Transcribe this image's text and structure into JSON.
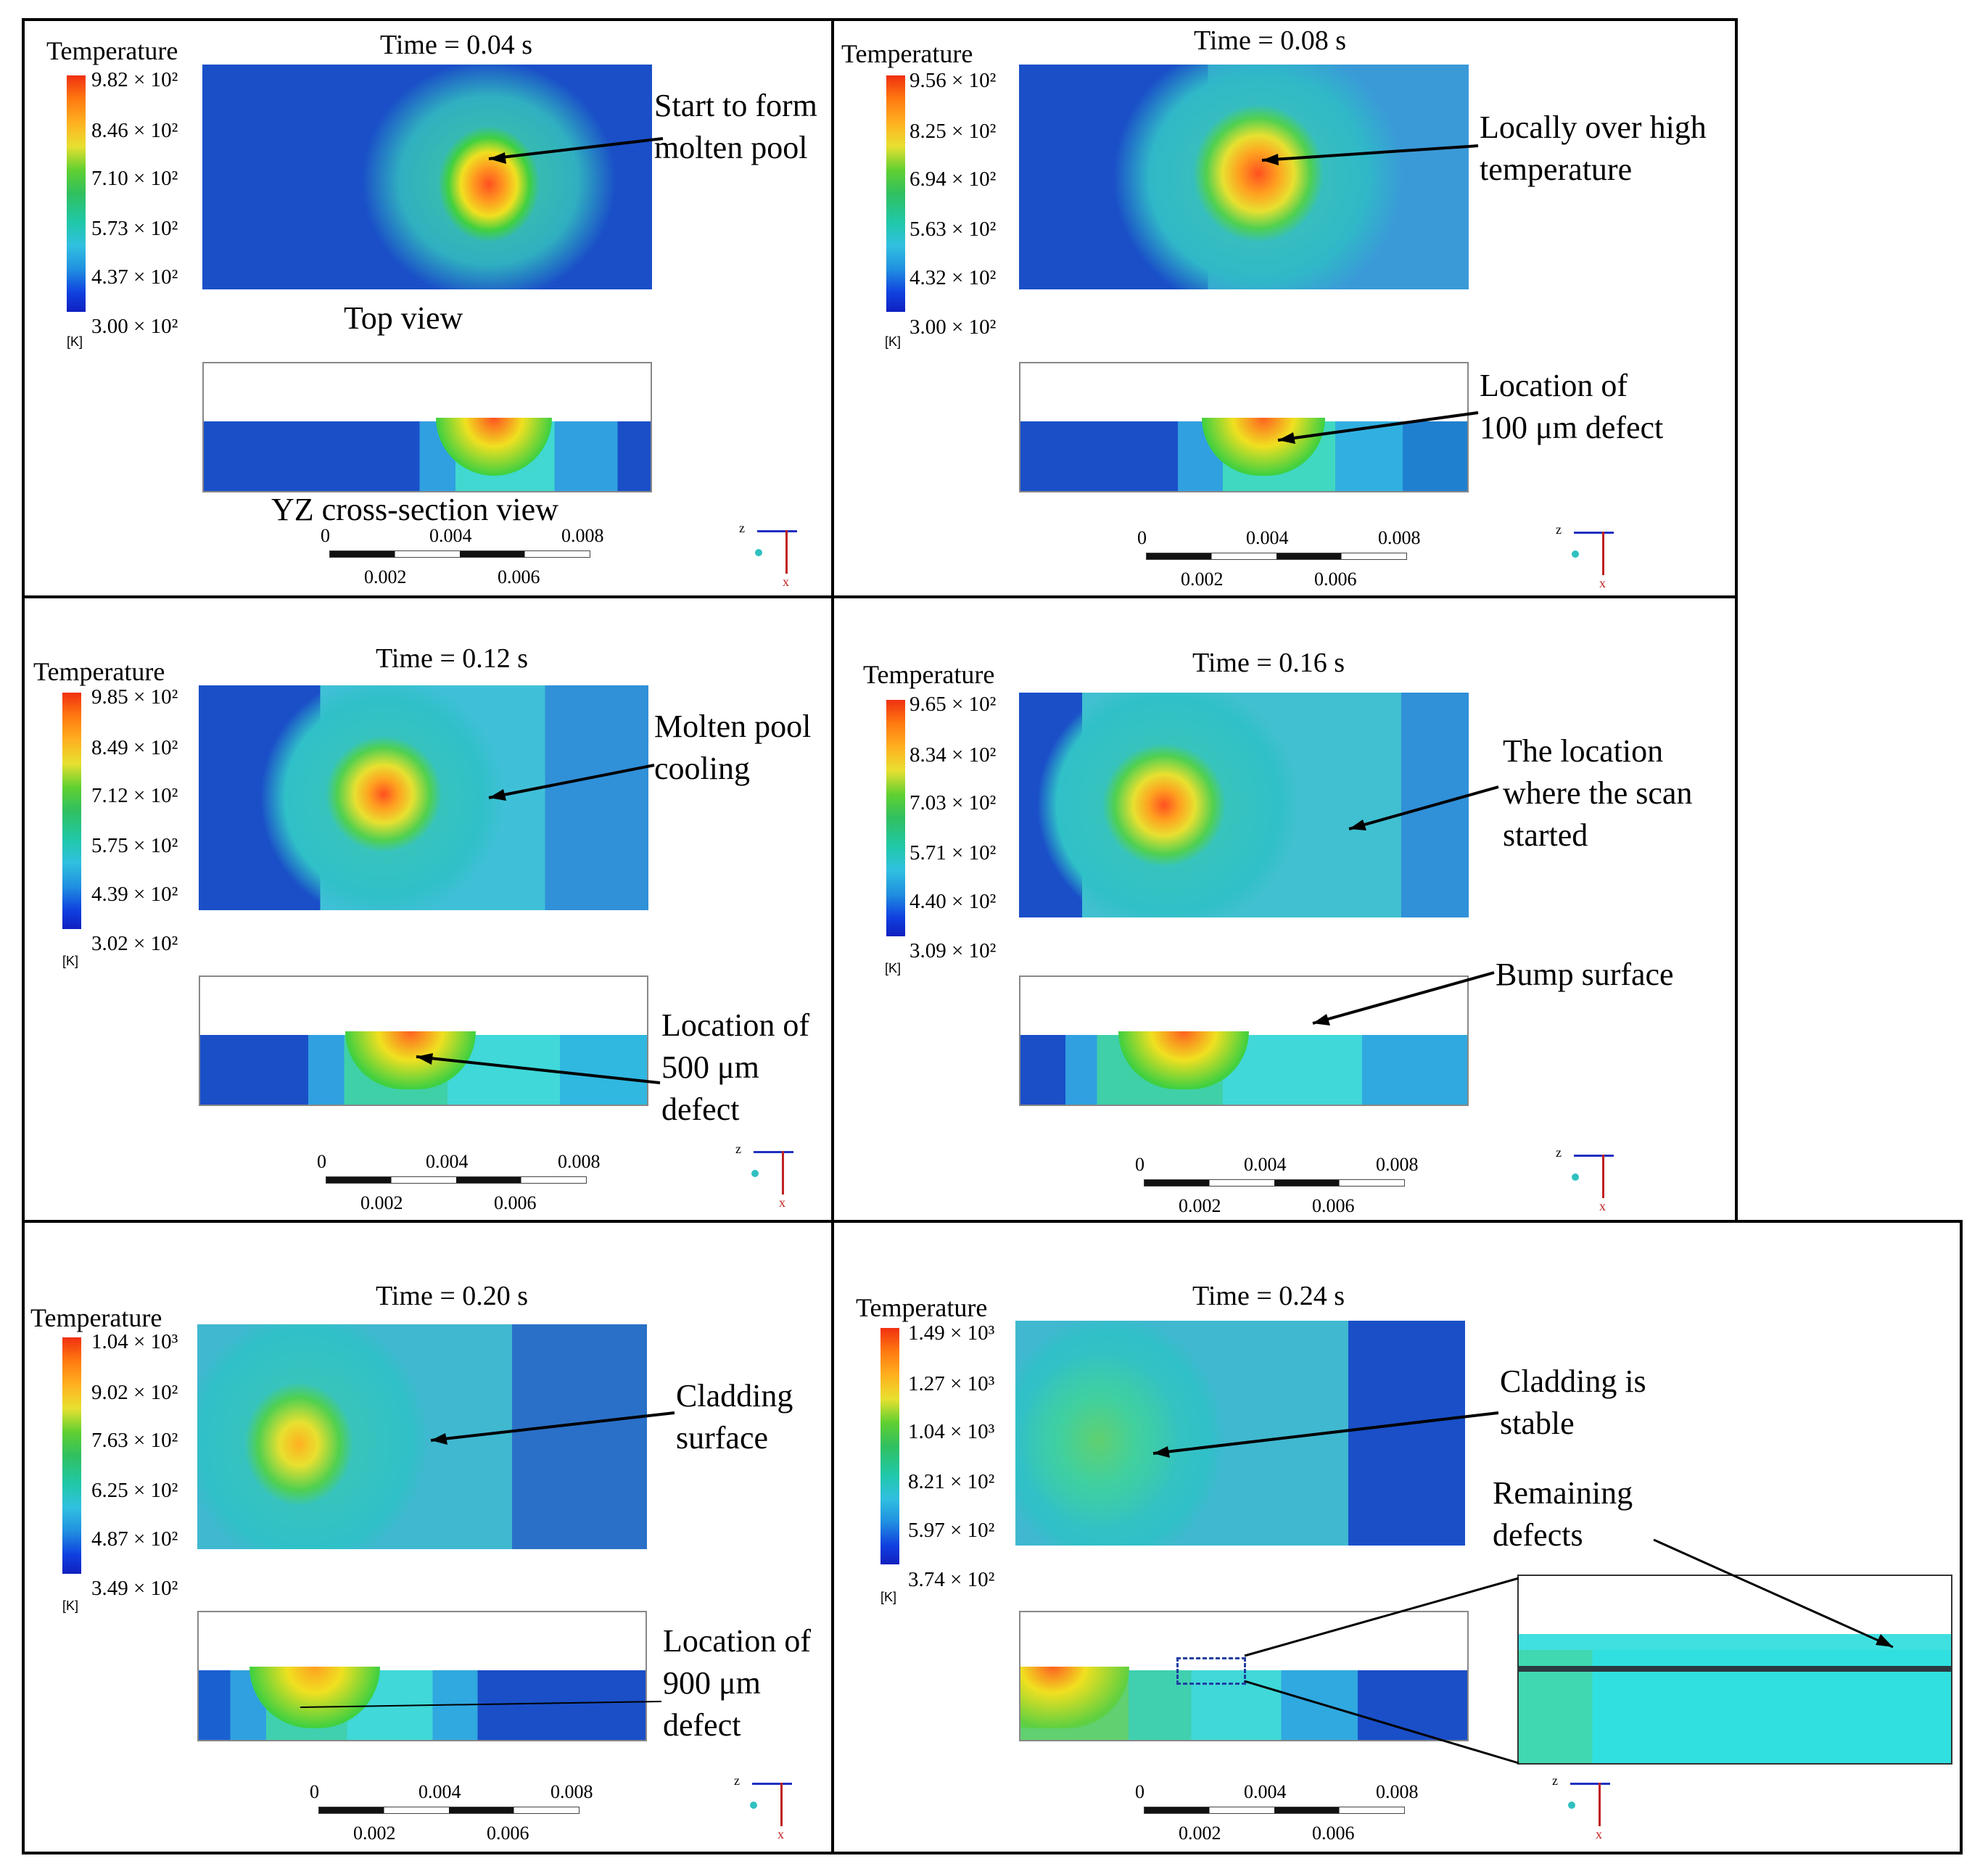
{
  "panels": [
    {
      "time": "Time = 0.04 s",
      "legend_title": "Temperature",
      "legend_values": [
        "9.82 × 10²",
        "8.46 × 10²",
        "7.10 × 10²",
        "5.73 × 10²",
        "4.37 × 10²",
        "3.00 × 10²"
      ],
      "unit": "[K]",
      "annotations": [
        "Start to form",
        "molten pool"
      ],
      "labels": [
        "Top view",
        "YZ cross-section view"
      ]
    },
    {
      "time": "Time = 0.08 s",
      "legend_title": "Temperature",
      "legend_values": [
        "9.56 × 10²",
        "8.25 × 10²",
        "6.94 × 10²",
        "5.63 × 10²",
        "4.32 × 10²",
        "3.00 × 10²"
      ],
      "unit": "[K]",
      "annotations": [
        "Locally over high",
        "temperature",
        "Location of",
        "100 μm defect"
      ]
    },
    {
      "time": "Time = 0.12 s",
      "legend_title": "Temperature",
      "legend_values": [
        "9.85 × 10²",
        "8.49 × 10²",
        "7.12 × 10²",
        "5.75 × 10²",
        "4.39 × 10²",
        "3.02 × 10²"
      ],
      "unit": "[K]",
      "annotations": [
        "Molten pool",
        "cooling",
        "Location of",
        "500 μm",
        "defect"
      ]
    },
    {
      "time": "Time = 0.16 s",
      "legend_title": "Temperature",
      "legend_values": [
        "9.65 × 10²",
        "8.34 × 10²",
        "7.03 × 10²",
        "5.71 × 10²",
        "4.40 × 10²",
        "3.09 × 10²"
      ],
      "unit": "[K]",
      "annotations": [
        "The location",
        "where the scan",
        "started",
        "Bump surface"
      ]
    },
    {
      "time": "Time = 0.20 s",
      "legend_title": "Temperature",
      "legend_values": [
        "1.04 × 10³",
        "9.02 × 10²",
        "7.63 × 10²",
        "6.25 × 10²",
        "4.87 × 10²",
        "3.49 × 10²"
      ],
      "unit": "[K]",
      "annotations": [
        "Cladding",
        "surface",
        "Location of",
        "900 μm",
        "defect"
      ]
    },
    {
      "time": "Time = 0.24 s",
      "legend_title": "Temperature",
      "legend_values": [
        "1.49 × 10³",
        "1.27 × 10³",
        "1.04 × 10³",
        "8.21 × 10²",
        "5.97 × 10²",
        "3.74 × 10²"
      ],
      "unit": "[K]",
      "annotations": [
        "Cladding is",
        "stable",
        "Remaining",
        "defects"
      ]
    }
  ],
  "scale_bar": {
    "top": [
      "0",
      "0.004",
      "0.008"
    ],
    "bottom": [
      "0.002",
      "0.006"
    ]
  },
  "axis_triad": {
    "z": "z",
    "x": "x"
  }
}
